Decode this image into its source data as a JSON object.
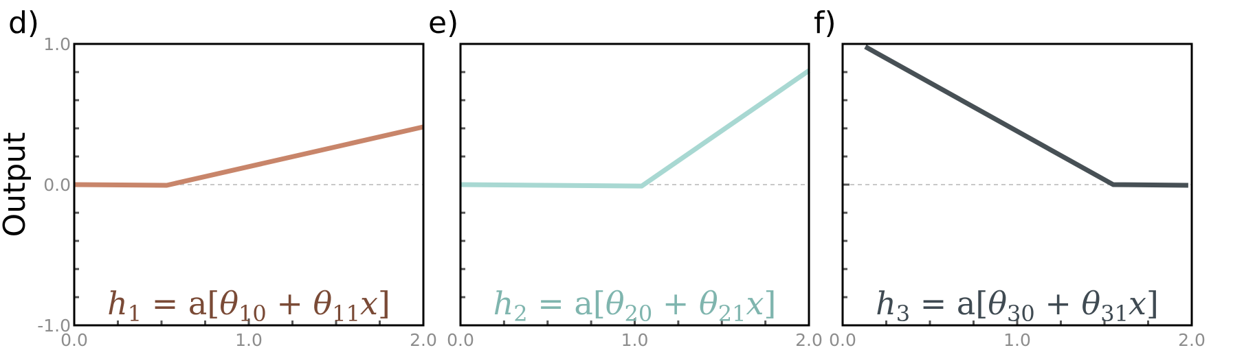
{
  "chart_data": [
    {
      "type": "line",
      "panel_label": "d)",
      "ylabel": "Output",
      "xlim": [
        0,
        2
      ],
      "ylim": [
        -1,
        1
      ],
      "x_ticks": [
        "0.0",
        "1.0",
        "2.0"
      ],
      "y_ticks": [
        "1.0",
        "0.0",
        "-1.0"
      ],
      "zero_line": true,
      "color": "#c8856a",
      "formula": {
        "var": "h",
        "idx": "1",
        "eq": " = a[",
        "th1": "θ",
        "s1": "10",
        "plus": " + ",
        "th2": "θ",
        "s2": "11",
        "x": "x",
        "close": "]"
      },
      "series": [
        {
          "x": [
            0.0,
            0.53,
            2.0
          ],
          "y": [
            0.0,
            -0.005,
            0.41
          ]
        }
      ]
    },
    {
      "type": "line",
      "panel_label": "e)",
      "ylabel": "",
      "xlim": [
        0,
        2
      ],
      "ylim": [
        -1,
        1
      ],
      "x_ticks": [
        "0.0",
        "1.0",
        "2.0"
      ],
      "y_ticks": [],
      "zero_line": true,
      "color": "#a8d8d2",
      "formula": {
        "var": "h",
        "idx": "2",
        "eq": " = a[",
        "th1": "θ",
        "s1": "20",
        "plus": " + ",
        "th2": "θ",
        "s2": "21",
        "x": "x",
        "close": "]"
      },
      "series": [
        {
          "x": [
            0.0,
            1.04,
            2.0
          ],
          "y": [
            0.0,
            -0.01,
            0.81
          ]
        }
      ]
    },
    {
      "type": "line",
      "panel_label": "f)",
      "ylabel": "",
      "xlim": [
        0,
        2
      ],
      "ylim": [
        -1,
        1
      ],
      "x_ticks": [
        "0.0",
        "1.0",
        "2.0"
      ],
      "y_ticks": [],
      "zero_line": true,
      "color": "#475055",
      "formula": {
        "var": "h",
        "idx": "3",
        "eq": " = a[",
        "th1": "θ",
        "s1": "30",
        "plus": " + ",
        "th2": "θ",
        "s2": "31",
        "x": "x",
        "close": "]"
      },
      "series": [
        {
          "x": [
            0.13,
            1.55,
            1.98
          ],
          "y": [
            0.98,
            0.0,
            -0.005
          ]
        }
      ]
    }
  ],
  "colors": {
    "formula_1": "#7a4a36",
    "formula_2": "#7fb5ae",
    "formula_3": "#3f4a52",
    "axis": "#000000",
    "tick": "#555555",
    "zero_line": "#c8c8c8"
  }
}
